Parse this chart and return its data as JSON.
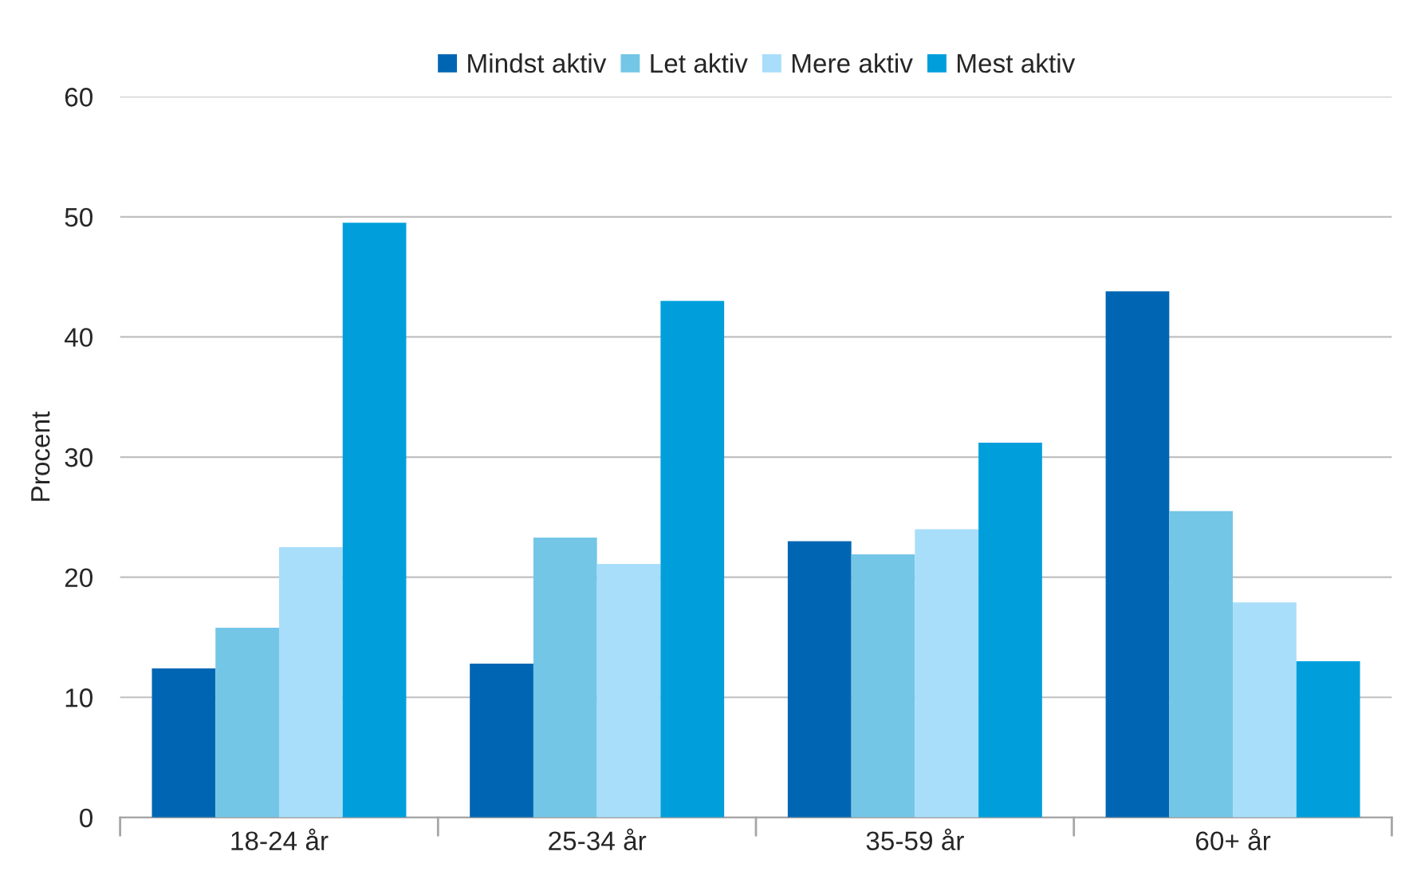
{
  "chart_data": {
    "type": "bar",
    "ylabel": "Procent",
    "categories": [
      "18-24 år",
      "25-34 år",
      "35-59 år",
      "60+ år"
    ],
    "series": [
      {
        "name": "Mindst aktiv",
        "color": "#0066b3",
        "values": [
          12.4,
          12.8,
          23.0,
          43.8
        ]
      },
      {
        "name": "Let aktiv",
        "color": "#73c6e6",
        "values": [
          15.8,
          23.3,
          21.9,
          25.5
        ]
      },
      {
        "name": "Mere aktiv",
        "color": "#a8defa",
        "values": [
          22.5,
          21.1,
          24.0,
          17.9
        ]
      },
      {
        "name": "Mest aktiv",
        "color": "#009fdc",
        "values": [
          49.5,
          43.0,
          31.2,
          13.0
        ]
      }
    ],
    "ylim": [
      0,
      60
    ],
    "yticks": [
      0,
      10,
      20,
      30,
      40,
      50,
      60
    ],
    "grid": "y",
    "legend": "top"
  }
}
